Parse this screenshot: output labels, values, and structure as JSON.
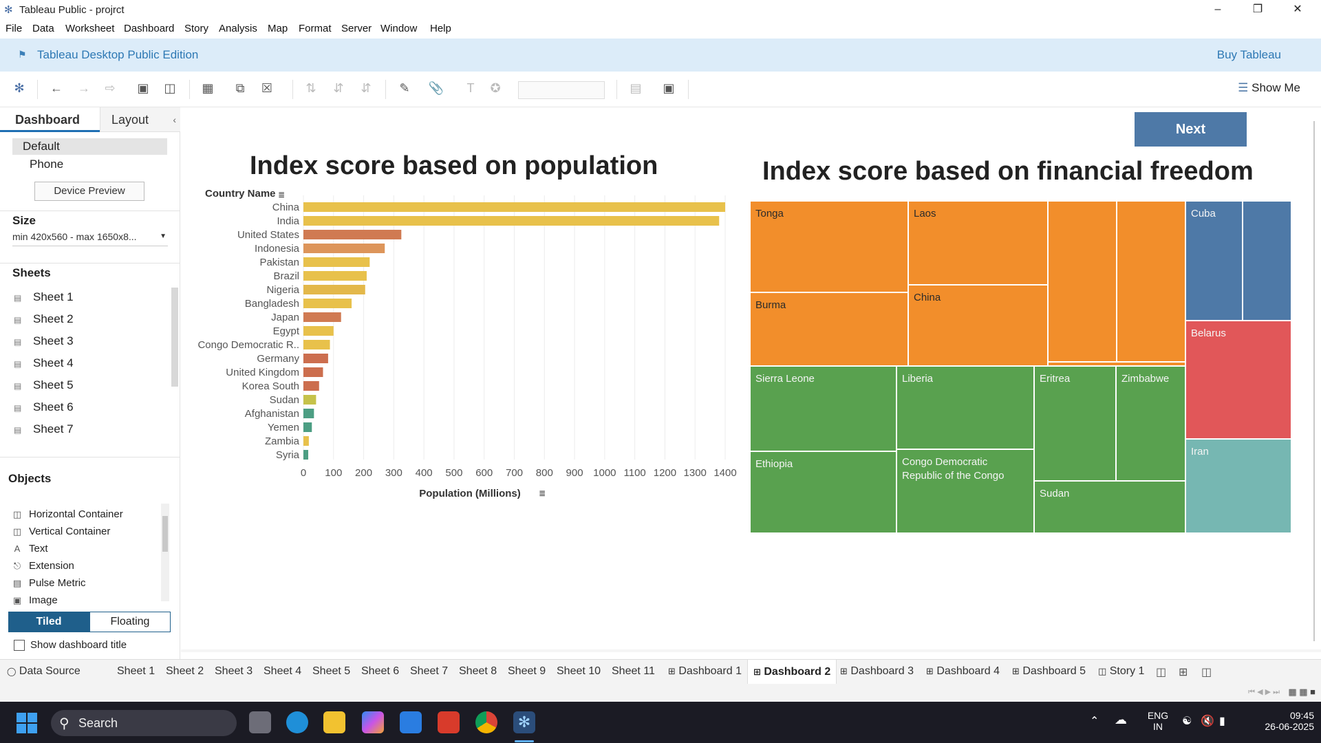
{
  "window": {
    "title": "Tableau Public - projrct",
    "controls": [
      "minimize",
      "maximize",
      "close"
    ]
  },
  "menu": [
    "File",
    "Data",
    "Worksheet",
    "Dashboard",
    "Story",
    "Analysis",
    "Map",
    "Format",
    "Server",
    "Window",
    "Help"
  ],
  "banner": {
    "edition": "Tableau Desktop Public Edition",
    "buy": "Buy Tableau"
  },
  "toolbar": {
    "show_me": "Show Me"
  },
  "left_panel": {
    "tab_dashboard": "Dashboard",
    "tab_layout": "Layout",
    "device_default": "Default",
    "device_phone": "Phone",
    "device_preview": "Device Preview",
    "size_title": "Size",
    "size_value": "min 420x560 - max 1650x8...",
    "sheets_title": "Sheets",
    "sheets": [
      "Sheet 1",
      "Sheet 2",
      "Sheet 3",
      "Sheet 4",
      "Sheet 5",
      "Sheet 6",
      "Sheet 7"
    ],
    "objects_title": "Objects",
    "objects": [
      "Horizontal Container",
      "Vertical Container",
      "Text",
      "Extension",
      "Pulse Metric",
      "Image"
    ],
    "tiled": "Tiled",
    "floating": "Floating",
    "show_title": "Show dashboard title"
  },
  "dashboard": {
    "next_button": "Next",
    "bar_title": "Index score based on population",
    "treemap_title": "Index score based on financial freedom"
  },
  "colors": {
    "yellow": "#e8c14b",
    "orange_red": "#d07a52",
    "gold": "#e0b34a",
    "olive": "#c5c24a",
    "teal": "#4c9e83",
    "tm_orange": "#f28e2b",
    "tm_green": "#59a14f",
    "tm_blue": "#4e79a7",
    "tm_red": "#e15759",
    "tm_teal": "#76b7b2",
    "next_btn": "#4e79a7"
  },
  "chart_data": [
    {
      "type": "bar",
      "title": "Index score based on population",
      "ylabel": "Country Name",
      "xlabel": "Population (Millions)",
      "xlim": [
        0,
        1400
      ],
      "xticks": [
        0,
        100,
        200,
        300,
        400,
        500,
        600,
        700,
        800,
        900,
        1000,
        1100,
        1200,
        1300,
        1400
      ],
      "orientation": "horizontal",
      "grid": true,
      "categories": [
        "China",
        "India",
        "United States",
        "Indonesia",
        "Pakistan",
        "Brazil",
        "Nigeria",
        "Bangladesh",
        "Japan",
        "Egypt",
        "Congo Democratic R..",
        "Germany",
        "United Kingdom",
        "Korea South",
        "Sudan",
        "Afghanistan",
        "Yemen",
        "Zambia",
        "Syria"
      ],
      "values": [
        1400,
        1380,
        325,
        270,
        220,
        210,
        205,
        160,
        125,
        100,
        88,
        82,
        65,
        52,
        42,
        35,
        28,
        18,
        16
      ],
      "bar_colors": [
        "#e8c14b",
        "#e8c14b",
        "#d07a52",
        "#dd955a",
        "#e8c14b",
        "#e8c14b",
        "#e3b84a",
        "#e8c14b",
        "#d07a52",
        "#e8c14b",
        "#e8c14b",
        "#cc6e4e",
        "#cc6e4e",
        "#cc6e4e",
        "#c5c24a",
        "#4c9e83",
        "#4c9e83",
        "#e8c14b",
        "#4c9e83"
      ]
    },
    {
      "type": "treemap",
      "title": "Index score based on financial freedom",
      "cells": [
        {
          "label": "Tonga",
          "color": "#f28e2b"
        },
        {
          "label": "Laos",
          "color": "#f28e2b"
        },
        {
          "label": "",
          "color": "#f28e2b"
        },
        {
          "label": "",
          "color": "#f28e2b"
        },
        {
          "label": "Burma",
          "color": "#f28e2b"
        },
        {
          "label": "China",
          "color": "#f28e2b"
        },
        {
          "label": "",
          "color": "#f28e2b"
        },
        {
          "label": "Sierra Leone",
          "color": "#59a14f"
        },
        {
          "label": "Liberia",
          "color": "#59a14f"
        },
        {
          "label": "Eritrea",
          "color": "#59a14f"
        },
        {
          "label": "Zimbabwe",
          "color": "#59a14f"
        },
        {
          "label": "Ethiopia",
          "color": "#59a14f"
        },
        {
          "label": "Congo Democratic\nRepublic of the Congo",
          "color": "#59a14f"
        },
        {
          "label": "Sudan",
          "color": "#59a14f"
        },
        {
          "label": "Cuba",
          "color": "#4e79a7"
        },
        {
          "label": "",
          "color": "#4e79a7"
        },
        {
          "label": "Belarus",
          "color": "#e15759"
        },
        {
          "label": "Iran",
          "color": "#76b7b2"
        }
      ]
    }
  ],
  "bottom_tabs": {
    "data_source": "Data Source",
    "tabs": [
      "Sheet 1",
      "Sheet 2",
      "Sheet 3",
      "Sheet 4",
      "Sheet 5",
      "Sheet 6",
      "Sheet 7",
      "Sheet 8",
      "Sheet 9",
      "Sheet 10",
      "Sheet 11",
      "Dashboard 1",
      "Dashboard 2",
      "Dashboard 3",
      "Dashboard 4",
      "Dashboard 5",
      "Story 1"
    ],
    "active": "Dashboard 2"
  },
  "taskbar": {
    "search": "Search",
    "lang_top": "ENG",
    "lang_bottom": "IN",
    "time": "09:45",
    "date": "26-06-2025"
  }
}
